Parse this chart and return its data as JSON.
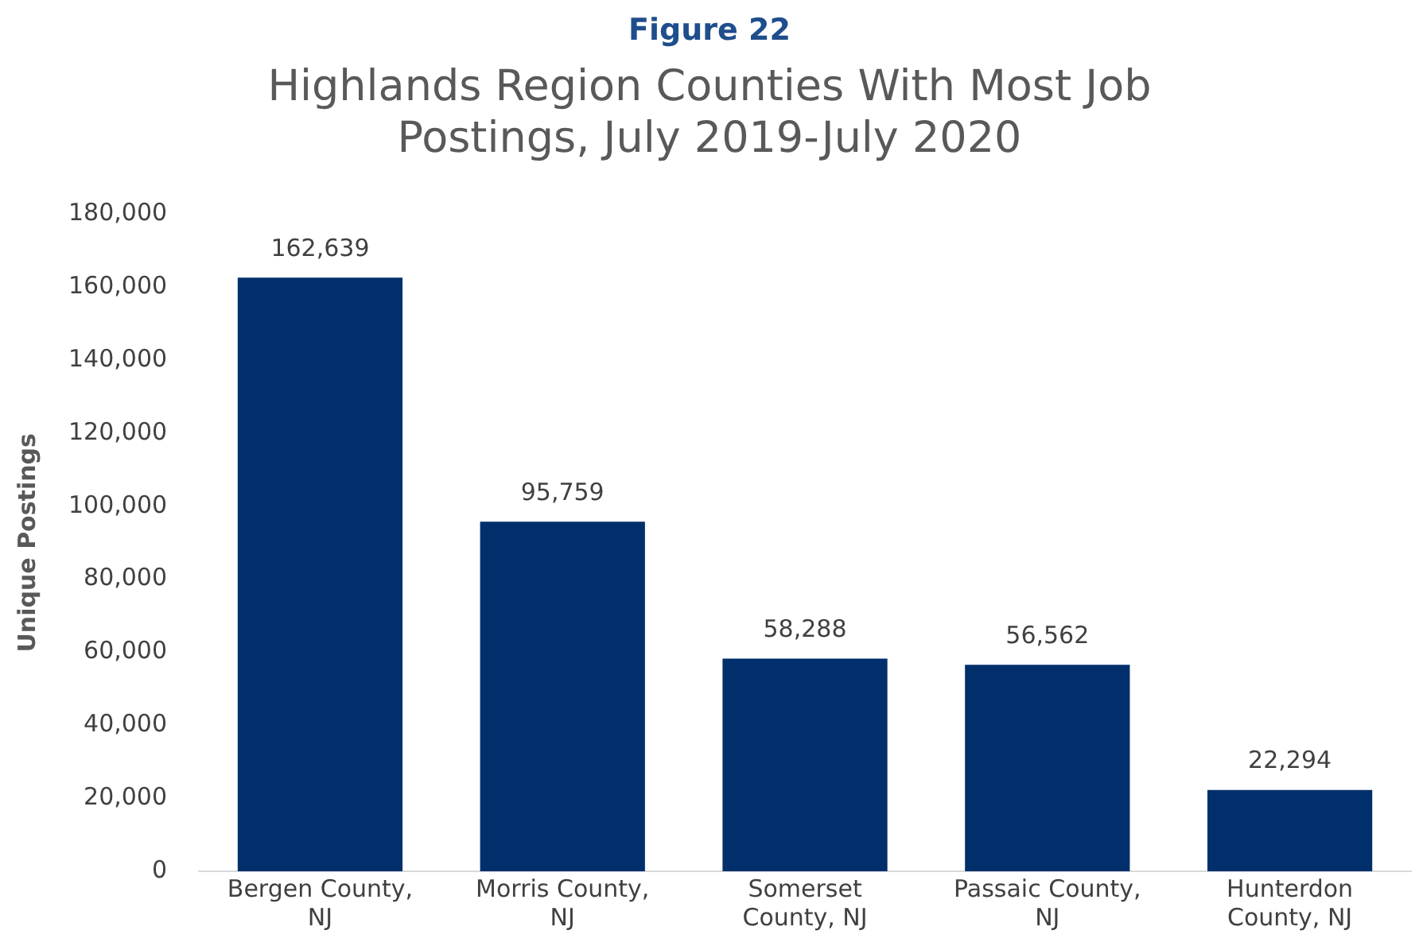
{
  "chart_data": {
    "type": "bar",
    "title": "Highlands Region Counties With Most Job Postings, July 2019-July 2020",
    "ylabel": "Unique Postings",
    "annotations": [
      "Figure 22"
    ],
    "categories": [
      "Bergen County, NJ",
      "Morris County, NJ",
      "Somerset County, NJ",
      "Passaic County, NJ",
      "Hunterdon County, NJ"
    ],
    "values": [
      162639,
      95759,
      58288,
      56562,
      22294
    ],
    "color": "#002f6c",
    "value_labels": [
      "162,639",
      "95,759",
      "58,288",
      "56,562",
      "22,294"
    ],
    "ylim": [
      0,
      180000
    ],
    "yticks": [
      0,
      {
        "value": 20000,
        "label": "20,000"
      },
      {
        "value": 40000,
        "label": "40,000"
      },
      {
        "value": 60000,
        "label": "60,000"
      },
      {
        "value": 80000,
        "label": "80,000"
      },
      {
        "value": 100000,
        "label": "100,000"
      },
      {
        "value": 120000,
        "label": "120,000"
      },
      {
        "value": 140000,
        "label": "140,000"
      },
      {
        "value": 160000,
        "label": "160,000"
      },
      {
        "value": 180000,
        "label": "180,000"
      }
    ],
    "grid": false,
    "legend": false
  }
}
